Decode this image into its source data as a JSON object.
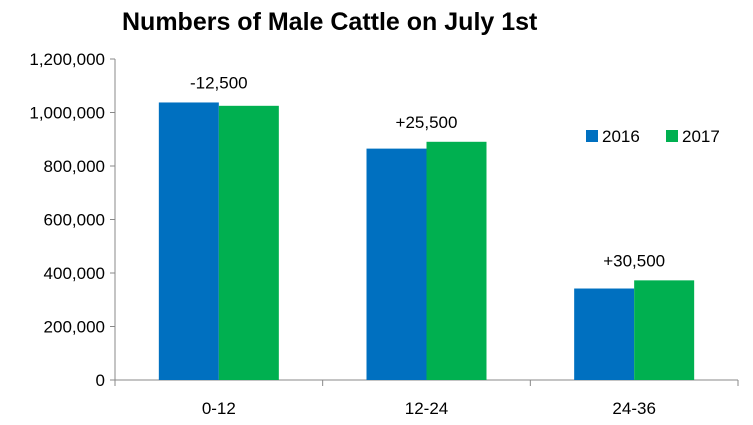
{
  "chart_data": {
    "type": "bar",
    "title": "Numbers of Male Cattle on July 1st",
    "xlabel": "",
    "ylabel": "",
    "categories": [
      "0-12",
      "12-24",
      "24-36"
    ],
    "series": [
      {
        "name": "2016",
        "color": "#0070C0",
        "values": [
          1037500,
          865000,
          342000
        ]
      },
      {
        "name": "2017",
        "color": "#00B050",
        "values": [
          1025000,
          890500,
          372500
        ]
      }
    ],
    "annotations": [
      "-12,500",
      "+25,500",
      "+30,500"
    ],
    "ylim": [
      0,
      1200000
    ],
    "yticks": [
      {
        "value": 0,
        "label": "0"
      },
      {
        "value": 200000,
        "label": "200,000"
      },
      {
        "value": 400000,
        "label": "400,000"
      },
      {
        "value": 600000,
        "label": "600,000"
      },
      {
        "value": 800000,
        "label": "800,000"
      },
      {
        "value": 1000000,
        "label": "1,000,000"
      },
      {
        "value": 1200000,
        "label": "1,200,000"
      }
    ],
    "grid": false,
    "legend_position": "right"
  }
}
